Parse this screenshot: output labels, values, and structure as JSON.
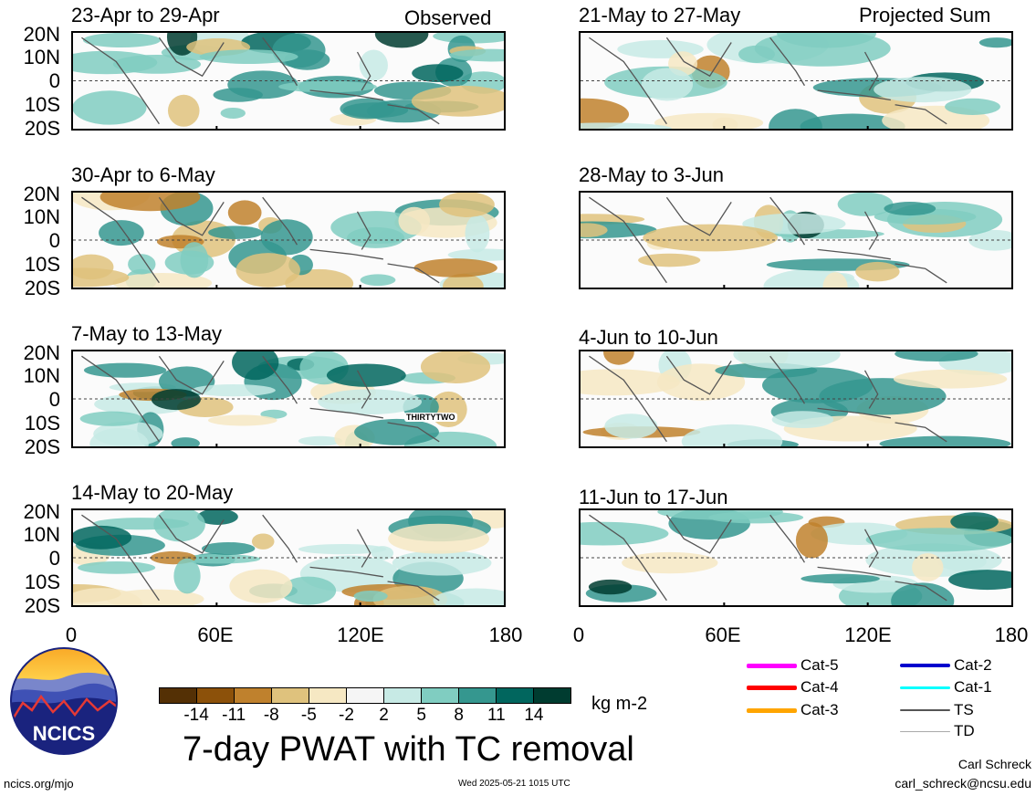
{
  "figure_title": "7-day PWAT with TC removal",
  "columns": {
    "left_tag": "Observed",
    "right_tag": "Projected Sum"
  },
  "lat_labels": [
    "20N",
    "10N",
    "0",
    "10S",
    "20S"
  ],
  "lon_labels": [
    "0",
    "60E",
    "120E",
    "180"
  ],
  "panels": [
    {
      "title": "23-Apr to 29-Apr",
      "column": "observed"
    },
    {
      "title": "30-Apr to 6-May",
      "column": "observed"
    },
    {
      "title": "7-May to 13-May",
      "column": "observed",
      "storm_label": "THIRTYTWO"
    },
    {
      "title": "14-May to 20-May",
      "column": "observed"
    },
    {
      "title": "21-May to 27-May",
      "column": "projected"
    },
    {
      "title": "28-May to 3-Jun",
      "column": "projected"
    },
    {
      "title": "4-Jun to 10-Jun",
      "column": "projected"
    },
    {
      "title": "11-Jun to 17-Jun",
      "column": "projected"
    }
  ],
  "colorbar": {
    "ticks": [
      "-14",
      "-11",
      "-8",
      "-5",
      "-2",
      "2",
      "5",
      "8",
      "11",
      "14"
    ],
    "colors": [
      "#543005",
      "#8c510a",
      "#bf812d",
      "#dfc27d",
      "#f6e8c3",
      "#f5f5f5",
      "#c7eae5",
      "#80cdc1",
      "#35978f",
      "#01665e",
      "#003c30"
    ],
    "units": "kg m-2"
  },
  "legend": [
    {
      "label": "Cat-5",
      "color": "#ff00ff",
      "width": 5
    },
    {
      "label": "Cat-4",
      "color": "#ff0000",
      "width": 5
    },
    {
      "label": "Cat-3",
      "color": "#ffa500",
      "width": 5
    },
    {
      "label": "Cat-2",
      "color": "#0000cd",
      "width": 4
    },
    {
      "label": "Cat-1",
      "color": "#00ffff",
      "width": 3
    },
    {
      "label": "TS",
      "color": "#555555",
      "width": 2
    },
    {
      "label": "TD",
      "color": "#aaaaaa",
      "width": 1
    }
  ],
  "logo_text": "NCICS",
  "footer": {
    "url": "ncics.org/mjo",
    "timestamp": "Wed 2025-05-21 1015 UTC",
    "author": "Carl Schreck",
    "email": "carl_schreck@ncsu.edu"
  }
}
